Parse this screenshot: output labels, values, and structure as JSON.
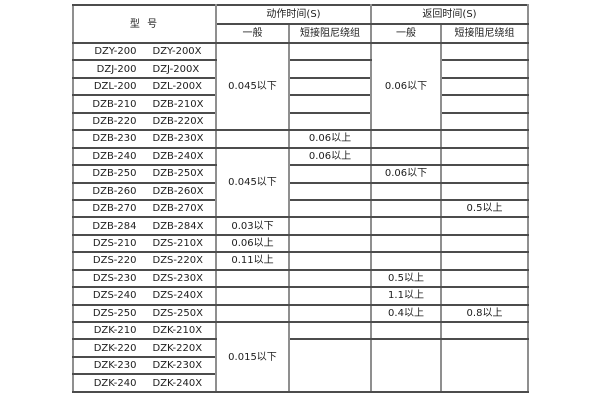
{
  "table": {
    "header": {
      "model": "型  号",
      "groups": [
        {
          "label": "动作时间(S)",
          "sub": [
            "一般",
            "短接阻尼绕组"
          ]
        },
        {
          "label": "返回时间(S)",
          "sub": [
            "一般",
            "短接阻尼绕组"
          ]
        }
      ]
    },
    "rows": [
      {
        "models": [
          "DZY-200",
          "DZY-200X"
        ]
      },
      {
        "models": [
          "DZJ-200",
          "DZJ-200X"
        ]
      },
      {
        "models": [
          "DZL-200",
          "DZL-200X"
        ]
      },
      {
        "models": [
          "DZB-210",
          "DZB-210X"
        ]
      },
      {
        "models": [
          "DZB-220",
          "DZB-220X"
        ]
      },
      {
        "models": [
          "DZB-230",
          "DZB-230X"
        ]
      },
      {
        "models": [
          "DZB-240",
          "DZB-240X"
        ]
      },
      {
        "models": [
          "DZB-250",
          "DZB-250X"
        ]
      },
      {
        "models": [
          "DZB-260",
          "DZB-260X"
        ]
      },
      {
        "models": [
          "DZB-270",
          "DZB-270X"
        ]
      },
      {
        "models": [
          "DZB-284",
          "DZB-284X"
        ]
      },
      {
        "models": [
          "DZS-210",
          "DZS-210X"
        ]
      },
      {
        "models": [
          "DZS-220",
          "DZS-220X"
        ]
      },
      {
        "models": [
          "DZS-230",
          "DZS-230X"
        ]
      },
      {
        "models": [
          "DZS-240",
          "DZS-240X"
        ]
      },
      {
        "models": [
          "DZS-250",
          "DZS-250X"
        ]
      },
      {
        "models": [
          "DZK-210",
          "DZK-210X"
        ]
      },
      {
        "models": [
          "DZK-220",
          "DZK-220X"
        ]
      },
      {
        "models": [
          "DZK-230",
          "DZK-230X"
        ]
      },
      {
        "models": [
          "DZK-240",
          "DZK-240X"
        ]
      }
    ],
    "columns": {
      "act_general": {
        "cells": [
          {
            "span": 5,
            "text": "0.045以下"
          },
          {
            "span": 1,
            "text": ""
          },
          {
            "span": 4,
            "text": "0.045以下"
          },
          {
            "span": 1,
            "text": "0.03以下"
          },
          {
            "span": 1,
            "text": "0.06以上"
          },
          {
            "span": 1,
            "text": "0.11以上"
          },
          {
            "span": 1,
            "text": ""
          },
          {
            "span": 1,
            "text": ""
          },
          {
            "span": 1,
            "text": ""
          },
          {
            "span": 4,
            "text": "0.015以下"
          }
        ]
      },
      "act_damp": {
        "cells": [
          {
            "span": 1,
            "text": ""
          },
          {
            "span": 1,
            "text": ""
          },
          {
            "span": 1,
            "text": ""
          },
          {
            "span": 1,
            "text": ""
          },
          {
            "span": 1,
            "text": ""
          },
          {
            "span": 1,
            "text": "0.06以上"
          },
          {
            "span": 1,
            "text": "0.06以上"
          },
          {
            "span": 1,
            "text": ""
          },
          {
            "span": 1,
            "text": ""
          },
          {
            "span": 1,
            "text": ""
          },
          {
            "span": 1,
            "text": ""
          },
          {
            "span": 1,
            "text": ""
          },
          {
            "span": 1,
            "text": ""
          },
          {
            "span": 1,
            "text": ""
          },
          {
            "span": 1,
            "text": ""
          },
          {
            "span": 1,
            "text": ""
          },
          {
            "span": 1,
            "text": ""
          },
          {
            "span": 3,
            "text": ""
          }
        ]
      },
      "ret_general": {
        "cells": [
          {
            "span": 5,
            "text": "0.06以下"
          },
          {
            "span": 1,
            "text": ""
          },
          {
            "span": 1,
            "text": ""
          },
          {
            "span": 1,
            "text": "0.06以下"
          },
          {
            "span": 1,
            "text": ""
          },
          {
            "span": 1,
            "text": ""
          },
          {
            "span": 1,
            "text": ""
          },
          {
            "span": 1,
            "text": ""
          },
          {
            "span": 1,
            "text": ""
          },
          {
            "span": 1,
            "text": "0.5以上"
          },
          {
            "span": 1,
            "text": "1.1以上"
          },
          {
            "span": 1,
            "text": "0.4以上"
          },
          {
            "span": 1,
            "text": ""
          },
          {
            "span": 3,
            "text": ""
          }
        ]
      },
      "ret_damp": {
        "cells": [
          {
            "span": 1,
            "text": ""
          },
          {
            "span": 1,
            "text": ""
          },
          {
            "span": 1,
            "text": ""
          },
          {
            "span": 1,
            "text": ""
          },
          {
            "span": 1,
            "text": ""
          },
          {
            "span": 1,
            "text": ""
          },
          {
            "span": 1,
            "text": ""
          },
          {
            "span": 1,
            "text": ""
          },
          {
            "span": 1,
            "text": ""
          },
          {
            "span": 1,
            "text": "0.5以上"
          },
          {
            "span": 1,
            "text": ""
          },
          {
            "span": 1,
            "text": ""
          },
          {
            "span": 1,
            "text": ""
          },
          {
            "span": 1,
            "text": ""
          },
          {
            "span": 1,
            "text": ""
          },
          {
            "span": 1,
            "text": "0.8以上"
          },
          {
            "span": 1,
            "text": ""
          },
          {
            "span": 3,
            "text": ""
          }
        ]
      }
    }
  }
}
